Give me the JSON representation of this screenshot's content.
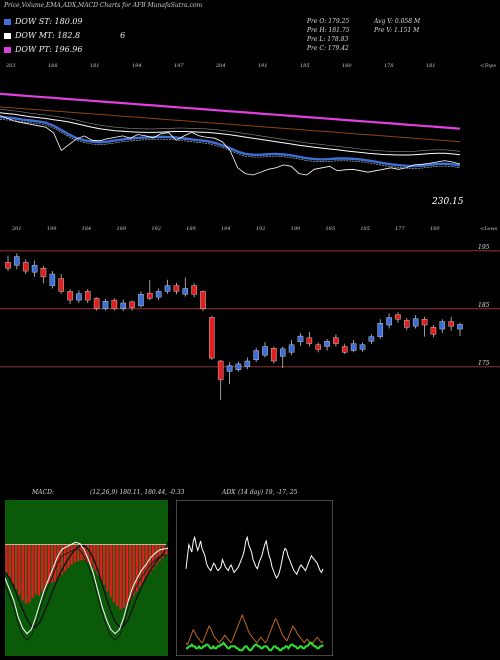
{
  "header": {
    "title": "Price,Volume,EMA,ADX,MACD Charts for AFB MunafaSutra.com"
  },
  "legend": [
    {
      "label": "DOW ST: 180.09",
      "color": "#3f6fd6"
    },
    {
      "label": "DOW MT: 182.8",
      "color": "#ffffff"
    },
    {
      "label": "DOW PT: 196.96",
      "color": "#e040e0"
    }
  ],
  "legend_extra": "6",
  "info": {
    "pre_o": "Pre O: 179.25",
    "pre_h": "Pre H: 181.75",
    "pre_l": "Pre L: 178.83",
    "pre_c": "Pre C: 179.42",
    "avg_v": "Avg V: 0.058 M",
    "pre_v": "Pre V: 1.151 M"
  },
  "colors": {
    "ema_st": "#3f6fd6",
    "ema_mt": "#ffffff",
    "ema_pt": "#e040e0",
    "ema_long": "#8b4513",
    "bull": "#3f6fd6",
    "bear": "#e02020",
    "level_line": "#a04040",
    "macd_bg": "#0a5a0a",
    "hist": "#e02020",
    "adx_white": "#ffffff",
    "adx_orange": "#d07020",
    "adx_green": "#30e030"
  },
  "chart_data": [
    {
      "type": "line",
      "name": "ema-panel",
      "top_labels": [
        "203",
        "188",
        "181",
        "194",
        "197",
        "204",
        "191",
        "185",
        "180",
        "178",
        "181"
      ],
      "bottom_labels": [
        "201",
        "199",
        "184",
        "189",
        "192",
        "189",
        "194",
        "192",
        "190",
        "185",
        "185",
        "177",
        "180"
      ],
      "right_top_label": "<Tops",
      "right_bottom_label": "<Lows",
      "price_label": "230.15",
      "ylim": [
        220,
        270
      ],
      "x": [
        0,
        1,
        2,
        3,
        4,
        5,
        6,
        7,
        8,
        9,
        10,
        11,
        12,
        13,
        14,
        15,
        16,
        17,
        18,
        19,
        20,
        21,
        22,
        23,
        24,
        25,
        26,
        27,
        28,
        29,
        30,
        31,
        32,
        33,
        34,
        35,
        36,
        37,
        38,
        39,
        40,
        41,
        42,
        43,
        44,
        45,
        46,
        47,
        48,
        49,
        50,
        51,
        52,
        53,
        54,
        55,
        56,
        57,
        58,
        59,
        60
      ],
      "series": [
        {
          "key": "pt",
          "values": [
            263.5,
            263.3,
            263.1,
            262.9,
            262.7,
            262.5,
            262.3,
            262.1,
            261.9,
            261.7,
            261.5,
            261.3,
            261.1,
            260.9,
            260.7,
            260.5,
            260.3,
            260.1,
            259.9,
            259.7,
            259.5,
            259.3,
            259.1,
            258.9,
            258.7,
            258.5,
            258.3,
            258.1,
            257.9,
            257.7,
            257.5,
            257.3,
            257.1,
            256.9,
            256.7,
            256.5,
            256.3,
            256.1,
            255.9,
            255.7,
            255.5,
            255.3,
            255.1,
            254.9,
            254.7,
            254.5,
            254.3,
            254.1,
            253.9,
            253.7,
            253.5,
            253.3,
            253.1,
            252.9,
            252.7,
            252.5,
            252.3,
            252.1,
            251.9,
            251.7,
            251.5
          ]
        },
        {
          "key": "long",
          "values": [
            259,
            258.8,
            258.6,
            258.4,
            258.2,
            258,
            257.8,
            257.6,
            257.4,
            257.2,
            257,
            256.8,
            256.6,
            256.4,
            256.2,
            256,
            255.8,
            255.6,
            255.4,
            255.2,
            255,
            254.8,
            254.6,
            254.4,
            254.2,
            254,
            253.8,
            253.6,
            253.4,
            253.2,
            253,
            252.8,
            252.6,
            252.4,
            252.2,
            252,
            251.8,
            251.6,
            251.4,
            251.2,
            251,
            250.8,
            250.6,
            250.4,
            250.2,
            250,
            249.8,
            249.6,
            249.4,
            249.2,
            249,
            248.8,
            248.6,
            248.4,
            248.2,
            248,
            247.8,
            247.6,
            247.4,
            247.2,
            247
          ]
        },
        {
          "key": "mt",
          "values": [
            257,
            256.7,
            256.4,
            256,
            255.6,
            255.3,
            255,
            254.6,
            254.2,
            253.8,
            253.2,
            252.6,
            252,
            251.5,
            251.1,
            250.8,
            250.6,
            250.4,
            250.3,
            250.2,
            250.2,
            250.3,
            250.4,
            250.5,
            250.5,
            250.4,
            250.3,
            250.2,
            250,
            249.7,
            249.4,
            249,
            248.6,
            248.2,
            247.8,
            247.4,
            247,
            246.6,
            246.2,
            245.8,
            245.4,
            245.1,
            244.8,
            244.5,
            244.2,
            243.9,
            243.6,
            243.3,
            243,
            242.8,
            242.6,
            242.5,
            242.4,
            242.4,
            242.5,
            242.7,
            242.9,
            243,
            243,
            242.8,
            242.5
          ]
        },
        {
          "key": "st",
          "values": [
            255.5,
            255.3,
            255,
            254.6,
            254.3,
            254,
            253.5,
            252.5,
            251,
            249.5,
            248.2,
            247.5,
            247,
            246.8,
            247,
            247.4,
            247.8,
            248.1,
            248.3,
            248.5,
            248.6,
            248.7,
            248.6,
            248.4,
            248.1,
            247.8,
            247.5,
            247.2,
            246.6,
            245.8,
            244.8,
            243.6,
            242.8,
            242.5,
            242.5,
            242.7,
            242.8,
            242.6,
            242.3,
            241.8,
            241.3,
            241,
            240.9,
            241,
            241.2,
            241.2,
            241.1,
            240.9,
            240.5,
            240.1,
            239.6,
            239.2,
            238.9,
            238.7,
            238.6,
            238.7,
            239,
            239.3,
            239.4,
            239.2,
            238.8
          ]
        },
        {
          "key": "price",
          "values": [
            256,
            255,
            254,
            253.5,
            253,
            252.5,
            252,
            250,
            244,
            246,
            248,
            249,
            247.5,
            247.3,
            248,
            248.5,
            249,
            248.2,
            249.5,
            249,
            248.3,
            249.8,
            250.1,
            247.5,
            249,
            250.2,
            249,
            248.5,
            248.2,
            247,
            244,
            238,
            236,
            235.5,
            236.5,
            237.5,
            238,
            239,
            238.5,
            236,
            235.5,
            237.5,
            238,
            238.5,
            237,
            237.3,
            237.5,
            237,
            236.5,
            237,
            237.5,
            238,
            237.5,
            238,
            239,
            239.2,
            239.5,
            240,
            240.5,
            240,
            239.3
          ]
        }
      ]
    },
    {
      "type": "candlestick",
      "name": "price-panel",
      "y_ticks": [
        {
          "label": "195",
          "value": 195
        },
        {
          "label": "185",
          "value": 185
        },
        {
          "label": "175",
          "value": 175
        }
      ],
      "levels": [
        195,
        185,
        175
      ],
      "ylim": [
        171,
        196
      ],
      "candles": [
        {
          "o": 193,
          "c": 192,
          "h": 194.2,
          "l": 191.5
        },
        {
          "o": 192.5,
          "c": 194,
          "h": 194.6,
          "l": 191.8
        },
        {
          "o": 193,
          "c": 191.5,
          "h": 193.5,
          "l": 191
        },
        {
          "o": 191.3,
          "c": 192.5,
          "h": 193.3,
          "l": 190.5
        },
        {
          "o": 192,
          "c": 190.5,
          "h": 192.4,
          "l": 189.4
        },
        {
          "o": 189,
          "c": 191,
          "h": 191.5,
          "l": 188.5
        },
        {
          "o": 190.2,
          "c": 188,
          "h": 191,
          "l": 187.6
        },
        {
          "o": 188,
          "c": 186.5,
          "h": 188.4,
          "l": 185.8
        },
        {
          "o": 186.5,
          "c": 187.6,
          "h": 188.2,
          "l": 186
        },
        {
          "o": 188,
          "c": 186.5,
          "h": 188.4,
          "l": 186
        },
        {
          "o": 186.8,
          "c": 185,
          "h": 187,
          "l": 184.7
        },
        {
          "o": 185,
          "c": 186.3,
          "h": 186.7,
          "l": 184.7
        },
        {
          "o": 186.5,
          "c": 185,
          "h": 186.8,
          "l": 184.7
        },
        {
          "o": 185,
          "c": 186,
          "h": 186.6,
          "l": 184.6
        },
        {
          "o": 186.2,
          "c": 185.2,
          "h": 186.4,
          "l": 184.7
        },
        {
          "o": 185.5,
          "c": 187.5,
          "h": 188,
          "l": 185.2
        },
        {
          "o": 187.7,
          "c": 186.8,
          "h": 190,
          "l": 186.5
        },
        {
          "o": 187,
          "c": 188,
          "h": 188.5,
          "l": 186.5
        },
        {
          "o": 188,
          "c": 189,
          "h": 190,
          "l": 187.6
        },
        {
          "o": 189,
          "c": 188,
          "h": 189.5,
          "l": 187.5
        },
        {
          "o": 187.5,
          "c": 188.5,
          "h": 190.4,
          "l": 187.1
        },
        {
          "o": 189,
          "c": 187.5,
          "h": 189.4,
          "l": 187
        },
        {
          "o": 188,
          "c": 185,
          "h": 188.2,
          "l": 184.6
        },
        {
          "o": 183.5,
          "c": 176.5,
          "h": 183.8,
          "l": 176.2
        },
        {
          "o": 176,
          "c": 172.8,
          "h": 176.2,
          "l": 168.5
        },
        {
          "o": 174.2,
          "c": 175.2,
          "h": 175.8,
          "l": 172
        },
        {
          "o": 174.5,
          "c": 175.5,
          "h": 175.9,
          "l": 174.2
        },
        {
          "o": 175,
          "c": 176,
          "h": 176.6,
          "l": 174.6
        },
        {
          "o": 176.2,
          "c": 177.8,
          "h": 178.3,
          "l": 175.8
        },
        {
          "o": 177,
          "c": 178.5,
          "h": 179.3,
          "l": 176.6
        },
        {
          "o": 178.2,
          "c": 176,
          "h": 178.5,
          "l": 175.6
        },
        {
          "o": 176.8,
          "c": 178.1,
          "h": 178.5,
          "l": 174.8
        },
        {
          "o": 177.5,
          "c": 178.8,
          "h": 179.6,
          "l": 177
        },
        {
          "o": 179.3,
          "c": 180.3,
          "h": 180.8,
          "l": 178.6
        },
        {
          "o": 180,
          "c": 179,
          "h": 181,
          "l": 178.5
        },
        {
          "o": 178.8,
          "c": 178,
          "h": 179.2,
          "l": 177.5
        },
        {
          "o": 178.5,
          "c": 179.4,
          "h": 179.8,
          "l": 177.8
        },
        {
          "o": 180,
          "c": 179,
          "h": 180.6,
          "l": 178.5
        },
        {
          "o": 178.5,
          "c": 177.5,
          "h": 179,
          "l": 177.2
        },
        {
          "o": 177.8,
          "c": 179,
          "h": 179.6,
          "l": 177.5
        },
        {
          "o": 178,
          "c": 178.8,
          "h": 179.2,
          "l": 177.6
        },
        {
          "o": 179.4,
          "c": 180.2,
          "h": 180.6,
          "l": 178.9
        },
        {
          "o": 180.2,
          "c": 182.5,
          "h": 183.2,
          "l": 179.8
        },
        {
          "o": 182.2,
          "c": 183.5,
          "h": 184.2,
          "l": 181.6
        },
        {
          "o": 184,
          "c": 183.2,
          "h": 184.4,
          "l": 182.6
        },
        {
          "o": 183,
          "c": 181.8,
          "h": 183.4,
          "l": 181.3
        },
        {
          "o": 182,
          "c": 183.3,
          "h": 183.9,
          "l": 181.6
        },
        {
          "o": 183.2,
          "c": 182.2,
          "h": 183.6,
          "l": 180.2
        },
        {
          "o": 181.8,
          "c": 180.6,
          "h": 182.2,
          "l": 180.1
        },
        {
          "o": 181.5,
          "c": 182.8,
          "h": 183.2,
          "l": 180.8
        },
        {
          "o": 182.8,
          "c": 182,
          "h": 183.6,
          "l": 181.2
        },
        {
          "o": 181.5,
          "c": 182.3,
          "h": 182.6,
          "l": 180.3
        }
      ]
    },
    {
      "type": "bar",
      "name": "macd-panel",
      "label": "MACD:",
      "params": "(12,26,9) 180.11, 180.44, -0.33",
      "ylim": [
        -10,
        4
      ],
      "histogram": [
        -2.5,
        -3,
        -3.5,
        -4,
        -4.5,
        -5,
        -5.3,
        -5.2,
        -4.8,
        -4.5,
        -4.6,
        -4.2,
        -3.8,
        -3.5,
        -3.4,
        -3.3,
        -3,
        -2.7,
        -2.4,
        -2.1,
        -1.8,
        -1.6,
        -1.5,
        -1.4,
        -1.4,
        -1.6,
        -1.8,
        -2.3,
        -2.7,
        -3.2,
        -3.6,
        -4.2,
        -4.7,
        -5.2,
        -5.5,
        -5.8,
        -5.7,
        -5.4,
        -5,
        -4.6,
        -4.2,
        -3.8,
        -3.4,
        -3,
        -2.6,
        -2.2,
        -1.8,
        -1.5,
        -1.2,
        -1
      ],
      "macd": [
        -3,
        -4,
        -5,
        -6.5,
        -7.5,
        -8,
        -7.6,
        -6.5,
        -5.2,
        -4,
        -3,
        -2,
        -1,
        -0.4,
        -0.2,
        0,
        0.2,
        0.1,
        -0.5,
        -1.4,
        -2.5,
        -4,
        -5.5,
        -6.7,
        -7.6,
        -8,
        -7.6,
        -6.5,
        -5,
        -3.8,
        -3,
        -2.3,
        -1.8,
        -1.2,
        -0.8,
        -0.5,
        -0.4,
        -0.33
      ],
      "signal": [
        -2.5,
        -3,
        -3.8,
        -4.8,
        -5.8,
        -6.7,
        -7.3,
        -7.4,
        -6.9,
        -6,
        -5,
        -4,
        -3,
        -2.2,
        -1.5,
        -0.9,
        -0.4,
        -0.1,
        -0.1,
        -0.5,
        -1.2,
        -2.2,
        -3.5,
        -4.8,
        -6,
        -6.9,
        -7.4,
        -7.3,
        -6.7,
        -5.7,
        -4.7,
        -3.8,
        -3,
        -2.3,
        -1.7,
        -1.2,
        -0.8,
        0.2
      ]
    },
    {
      "type": "line",
      "name": "adx-panel",
      "label": "ADX",
      "params": "(14 day) 19, -17, 25",
      "ylim": [
        0,
        80
      ],
      "adx": [
        45,
        52,
        58,
        56,
        54,
        60,
        62,
        58,
        55,
        57,
        60,
        56,
        54,
        52,
        48,
        46,
        45,
        44,
        46,
        48,
        47,
        45,
        44,
        45,
        46,
        50,
        48,
        46,
        45,
        44,
        46,
        47,
        45,
        43,
        44,
        45,
        46,
        48,
        50,
        52,
        55,
        60,
        62,
        58,
        56,
        54,
        50,
        48,
        46,
        45,
        48,
        50,
        52,
        55,
        58,
        60,
        56,
        52,
        50,
        46,
        44,
        42,
        40,
        41,
        43,
        46,
        50,
        54,
        56,
        55,
        52,
        50,
        48,
        46,
        44,
        43,
        42,
        44,
        46,
        47,
        46,
        45,
        44,
        46,
        48,
        50,
        52,
        51,
        50,
        49,
        48,
        46,
        44,
        43,
        45
      ],
      "di_plus": [
        5,
        4,
        6,
        8,
        10,
        12,
        11,
        9,
        8,
        7,
        6,
        5,
        6,
        8,
        10,
        12,
        14,
        13,
        11,
        9,
        8,
        7,
        6,
        5,
        6,
        7,
        8,
        9,
        8,
        7,
        6,
        5,
        6,
        8,
        10,
        12,
        14,
        16,
        18,
        20,
        18,
        16,
        14,
        12,
        10,
        9,
        8,
        7,
        6,
        5,
        6,
        7,
        8,
        7,
        6,
        5,
        6,
        8,
        10,
        12,
        14,
        16,
        18,
        17,
        15,
        13,
        11,
        9,
        8,
        7,
        6,
        8,
        10,
        12,
        14,
        13,
        12,
        10,
        9,
        8,
        7,
        6,
        5,
        6,
        7,
        6,
        5,
        4,
        5,
        6,
        7,
        8,
        7,
        6,
        5,
        6
      ],
      "di_minus": [
        2,
        2,
        3,
        3,
        4,
        3,
        3,
        2,
        2,
        3,
        2,
        2,
        3,
        3,
        4,
        4,
        3,
        2,
        2,
        3,
        2,
        2,
        3,
        3,
        4,
        4,
        5,
        4,
        3,
        2,
        2,
        3,
        3,
        3,
        3,
        2,
        2,
        1,
        1,
        1,
        2,
        3,
        3,
        2,
        1,
        1,
        2,
        3,
        4,
        4,
        3,
        3,
        2,
        2,
        3,
        3,
        3,
        2,
        1,
        1,
        2,
        3,
        3,
        2,
        2,
        1,
        1,
        2,
        2,
        3,
        3,
        2,
        3,
        4,
        4,
        3,
        3,
        2,
        2,
        3,
        3,
        2,
        2,
        3,
        3,
        4,
        5,
        5,
        4,
        3,
        3,
        2,
        2,
        3,
        3,
        4
      ]
    }
  ]
}
